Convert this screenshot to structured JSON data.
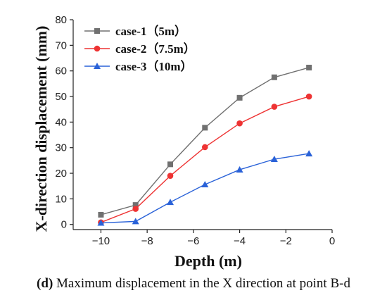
{
  "chart_data": {
    "type": "line",
    "xlabel": "Depth (m)",
    "ylabel": "X-direction displacement (mm)",
    "xlim": [
      -11.2,
      0
    ],
    "ylim": [
      -2,
      80
    ],
    "xticks": [
      -10,
      -8,
      -6,
      -4,
      -2,
      0
    ],
    "yticks": [
      0,
      10,
      20,
      30,
      40,
      50,
      60,
      70,
      80
    ],
    "legend_position": "top-left",
    "grid": false,
    "series": [
      {
        "name": "case-1（5m）",
        "color": "#707070",
        "marker": "square",
        "x": [
          -10,
          -8.5,
          -7,
          -5.5,
          -4,
          -2.5,
          -1
        ],
        "y": [
          3.8,
          7.6,
          23.5,
          37.8,
          49.5,
          57.5,
          61.3
        ]
      },
      {
        "name": "case-2（7.5m）",
        "color": "#ee3333",
        "marker": "circle",
        "x": [
          -10,
          -8.5,
          -7,
          -5.5,
          -4,
          -2.5,
          -1
        ],
        "y": [
          0.8,
          6.1,
          19.0,
          30.2,
          39.5,
          46.0,
          50.0
        ]
      },
      {
        "name": "case-3（10m）",
        "color": "#2a62d8",
        "marker": "triangle",
        "x": [
          -10,
          -8.5,
          -7,
          -5.5,
          -4,
          -2.5,
          -1
        ],
        "y": [
          0.6,
          1.2,
          8.7,
          15.6,
          21.4,
          25.5,
          27.7
        ]
      }
    ]
  },
  "caption": {
    "panel": "(d)",
    "text": " Maximum displacement in the X direction at point B-d"
  }
}
